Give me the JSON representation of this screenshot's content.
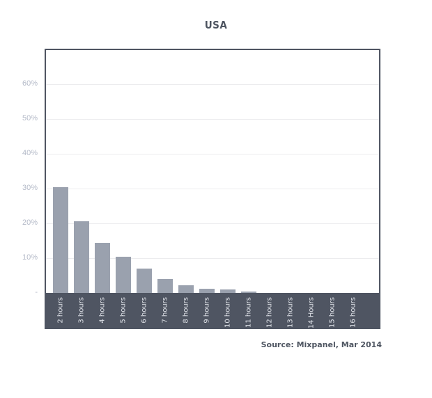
{
  "title": "USA",
  "source": "Source: Mixpanel, Mar 2014",
  "colors": {
    "bar": "#9aa1ae",
    "frame": "#4f5562",
    "ytick": "#b4bac8",
    "xlabel": "#dfe2e8"
  },
  "chart_data": {
    "type": "bar",
    "title": "USA",
    "xlabel": "",
    "ylabel": "",
    "ylim": [
      0,
      60
    ],
    "grid": true,
    "yticks": [
      "-",
      "10%",
      "20%",
      "30%",
      "40%",
      "50%",
      "60%"
    ],
    "categories": [
      "2 hours",
      "3 hours",
      "4 hours",
      "5 hours",
      "6 hours",
      "7 hours",
      "8 hours",
      "9 hours",
      "10 hours",
      "11 hours",
      "12 hours",
      "13 hours",
      "14 Hours",
      "15 hours",
      "16 hours"
    ],
    "values": [
      30.4,
      20.6,
      14.4,
      10.4,
      7.0,
      4.0,
      2.2,
      1.2,
      1.0,
      0.4,
      0,
      0,
      0,
      0,
      0
    ],
    "annotations": [
      "Source: Mixpanel, Mar 2014"
    ]
  }
}
